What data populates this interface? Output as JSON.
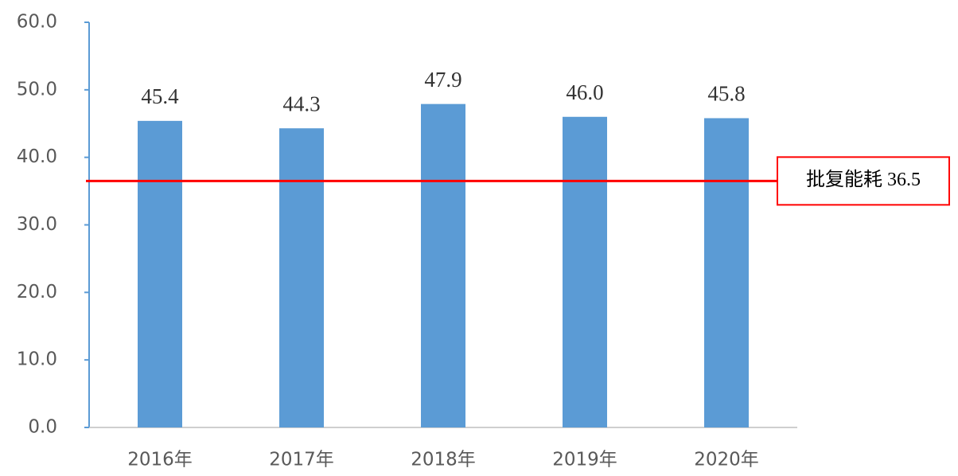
{
  "chart_data": {
    "type": "bar",
    "categories": [
      "2016年",
      "2017年",
      "2018年",
      "2019年",
      "2020年"
    ],
    "values": [
      45.4,
      44.3,
      47.9,
      46.0,
      45.8
    ],
    "value_labels": [
      "45.4",
      "44.3",
      "47.9",
      "46.0",
      "45.8"
    ],
    "color": "#5b9bd5",
    "ylim": [
      0,
      60
    ],
    "yticks": [
      {
        "value": 0,
        "label": "0.0"
      },
      {
        "value": 10,
        "label": "10.0"
      },
      {
        "value": 20,
        "label": "20.0"
      },
      {
        "value": 30,
        "label": "30.0"
      },
      {
        "value": 40,
        "label": "40.0"
      },
      {
        "value": 50,
        "label": "50.0"
      },
      {
        "value": 60,
        "label": "60.0"
      }
    ],
    "grid": false,
    "reference_line": {
      "label": "批复能耗 36.5",
      "value": 36.5,
      "color": "#ff0000"
    }
  }
}
